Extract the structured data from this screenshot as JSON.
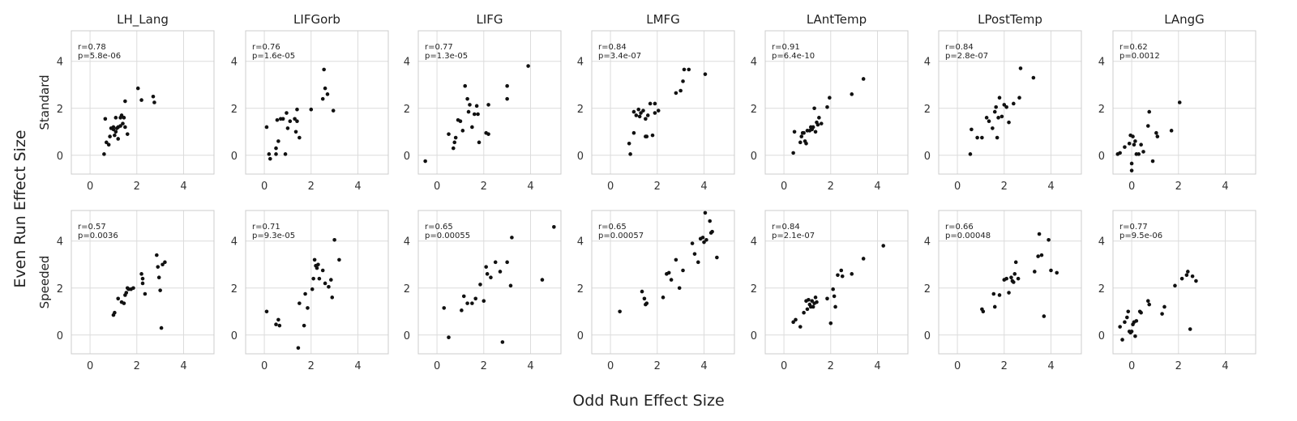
{
  "figure": {
    "xlabel": "Odd Run Effect Size",
    "ylabel": "Even Run Effect Size"
  },
  "chart_data": {
    "type": "scatter",
    "xlim": [
      -0.8,
      5.3
    ],
    "ylim": [
      -0.8,
      5.3
    ],
    "x_ticks": [
      0,
      2,
      4
    ],
    "y_ticks": [
      0,
      2,
      4
    ],
    "grid": true,
    "point_color": "#111111",
    "columns": [
      "LH_Lang",
      "LIFGorb",
      "LIFG",
      "LMFG",
      "LAntTemp",
      "LPostTemp",
      "LAngG"
    ],
    "rows": [
      "Standard",
      "Speeded"
    ],
    "panels": [
      {
        "row": "Standard",
        "column": "LH_Lang",
        "r": "r=0.78",
        "p": "p=5.8e-06",
        "x": [
          0.6,
          0.7,
          0.65,
          0.8,
          0.85,
          0.9,
          1.0,
          1.0,
          1.05,
          1.1,
          1.1,
          1.15,
          1.2,
          1.2,
          1.3,
          1.3,
          1.35,
          1.4,
          1.45,
          1.5,
          1.5,
          1.6,
          2.05,
          2.2,
          2.7,
          2.75
        ],
        "y": [
          0.05,
          0.55,
          1.55,
          0.45,
          0.8,
          1.15,
          1.1,
          1.2,
          0.85,
          1.0,
          1.6,
          1.15,
          0.7,
          1.2,
          1.25,
          1.6,
          1.7,
          1.35,
          1.6,
          1.2,
          2.3,
          0.9,
          2.85,
          2.35,
          2.5,
          2.25
        ]
      },
      {
        "row": "Standard",
        "column": "LIFGorb",
        "r": "r=0.76",
        "p": "p=1.6e-05",
        "x": [
          0.1,
          0.2,
          0.25,
          0.5,
          0.5,
          0.55,
          0.6,
          0.7,
          0.8,
          0.9,
          0.95,
          1.0,
          1.1,
          1.3,
          1.35,
          1.4,
          1.4,
          1.5,
          2.0,
          2.5,
          2.55,
          2.6,
          2.7,
          2.95
        ],
        "y": [
          1.2,
          0.05,
          -0.15,
          0.05,
          0.3,
          1.5,
          0.6,
          1.55,
          1.55,
          0.05,
          1.8,
          1.15,
          1.45,
          1.55,
          1.0,
          1.45,
          1.95,
          0.75,
          1.95,
          2.4,
          3.65,
          2.85,
          2.6,
          1.9
        ]
      },
      {
        "row": "Standard",
        "column": "LIFG",
        "r": "r=0.77",
        "p": "p=1.3e-05",
        "x": [
          -0.5,
          0.5,
          0.7,
          0.75,
          0.8,
          0.9,
          1.0,
          1.1,
          1.2,
          1.3,
          1.35,
          1.4,
          1.5,
          1.6,
          1.7,
          1.8,
          1.75,
          2.1,
          2.2,
          2.2,
          3.0,
          3.0,
          3.9
        ],
        "y": [
          -0.25,
          0.9,
          0.3,
          0.55,
          0.75,
          1.5,
          1.45,
          1.05,
          2.95,
          2.4,
          1.85,
          2.15,
          1.2,
          1.75,
          2.1,
          0.55,
          1.75,
          0.95,
          2.15,
          0.9,
          2.95,
          2.4,
          3.8
        ]
      },
      {
        "row": "Standard",
        "column": "LMFG",
        "r": "r=0.84",
        "p": "p=3.4e-07",
        "x": [
          0.8,
          0.85,
          1.0,
          1.0,
          1.1,
          1.2,
          1.25,
          1.3,
          1.4,
          1.5,
          1.5,
          1.55,
          1.6,
          1.7,
          1.8,
          1.9,
          1.9,
          2.05,
          2.8,
          3.0,
          3.1,
          3.15,
          3.35,
          4.05
        ],
        "y": [
          0.5,
          0.05,
          0.95,
          1.85,
          1.7,
          1.95,
          1.65,
          1.8,
          1.9,
          0.8,
          1.55,
          0.8,
          1.7,
          2.2,
          0.85,
          1.8,
          2.2,
          1.9,
          2.65,
          2.75,
          3.15,
          3.65,
          3.65,
          3.45
        ]
      },
      {
        "row": "Standard",
        "column": "LAntTemp",
        "r": "r=0.91",
        "p": "p=6.4e-10",
        "x": [
          0.4,
          0.45,
          0.7,
          0.75,
          0.8,
          0.85,
          0.9,
          0.95,
          1.0,
          1.1,
          1.15,
          1.2,
          1.25,
          1.3,
          1.35,
          1.4,
          1.45,
          1.5,
          1.6,
          1.85,
          1.95,
          2.9,
          3.4
        ],
        "y": [
          0.1,
          1.0,
          0.55,
          0.8,
          0.95,
          0.95,
          0.6,
          0.5,
          1.05,
          1.05,
          1.2,
          1.1,
          1.2,
          2.0,
          1.0,
          1.4,
          1.3,
          1.6,
          1.35,
          2.05,
          2.45,
          2.6,
          3.25
        ]
      },
      {
        "row": "Standard",
        "column": "LPostTemp",
        "r": "r=0.84",
        "p": "p=2.8e-07",
        "x": [
          0.55,
          0.6,
          0.85,
          1.05,
          1.25,
          1.35,
          1.5,
          1.6,
          1.65,
          1.7,
          1.75,
          1.8,
          1.9,
          2.0,
          2.1,
          2.2,
          2.4,
          2.65,
          2.7,
          3.25
        ],
        "y": [
          0.05,
          1.1,
          0.75,
          0.75,
          1.6,
          1.45,
          1.15,
          1.85,
          2.05,
          0.75,
          1.6,
          2.45,
          1.65,
          2.15,
          2.05,
          1.4,
          2.2,
          2.45,
          3.7,
          3.3
        ]
      },
      {
        "row": "Standard",
        "column": "LAngG",
        "r": "r=0.62",
        "p": "p=0.0012",
        "x": [
          -0.6,
          -0.5,
          -0.3,
          -0.1,
          -0.05,
          0.0,
          0.0,
          0.05,
          0.1,
          0.15,
          0.2,
          0.3,
          0.4,
          0.5,
          0.7,
          0.75,
          0.9,
          1.05,
          1.1,
          1.7,
          2.05
        ],
        "y": [
          0.05,
          0.1,
          0.35,
          0.5,
          0.85,
          -0.35,
          -0.65,
          0.8,
          0.45,
          0.6,
          0.05,
          0.05,
          0.45,
          0.15,
          1.25,
          1.85,
          -0.25,
          0.95,
          0.8,
          1.05,
          2.25
        ]
      },
      {
        "row": "Speeded",
        "column": "LH_Lang",
        "r": "r=0.57",
        "p": "p=0.0036",
        "x": [
          1.0,
          1.05,
          1.2,
          1.35,
          1.45,
          1.5,
          1.55,
          1.6,
          1.65,
          1.75,
          1.85,
          2.2,
          2.25,
          2.25,
          2.35,
          2.85,
          2.9,
          2.95,
          3.0,
          3.05,
          3.1,
          3.2
        ],
        "y": [
          0.85,
          0.95,
          1.55,
          1.4,
          1.35,
          1.7,
          1.8,
          2.0,
          1.95,
          1.95,
          2.0,
          2.6,
          2.2,
          2.4,
          1.75,
          3.4,
          2.9,
          2.45,
          1.9,
          0.3,
          3.0,
          3.1
        ]
      },
      {
        "row": "Speeded",
        "column": "LIFGorb",
        "r": "r=0.71",
        "p": "p=9.3e-05",
        "x": [
          0.1,
          0.5,
          0.6,
          0.65,
          1.45,
          1.5,
          1.7,
          1.75,
          1.85,
          2.05,
          2.1,
          2.15,
          2.2,
          2.25,
          2.3,
          2.35,
          2.5,
          2.6,
          2.75,
          2.85,
          2.9,
          3.0,
          3.2
        ],
        "y": [
          1.0,
          0.45,
          0.65,
          0.4,
          -0.55,
          1.35,
          0.4,
          1.75,
          1.15,
          1.95,
          2.4,
          3.2,
          2.95,
          2.85,
          3.0,
          2.4,
          2.75,
          2.2,
          2.05,
          2.35,
          1.6,
          4.05,
          3.2
        ]
      },
      {
        "row": "Speeded",
        "column": "LIFG",
        "r": "r=0.65",
        "p": "p=0.00055",
        "x": [
          0.3,
          0.5,
          1.05,
          1.15,
          1.3,
          1.5,
          1.65,
          1.85,
          2.0,
          2.1,
          2.15,
          2.3,
          2.5,
          2.7,
          2.8,
          3.0,
          3.15,
          3.2,
          4.5,
          5.0
        ],
        "y": [
          1.15,
          -0.1,
          1.05,
          1.65,
          1.35,
          1.35,
          1.55,
          2.15,
          1.45,
          2.9,
          2.6,
          2.45,
          3.1,
          2.7,
          -0.3,
          3.1,
          2.1,
          4.15,
          2.35,
          4.6
        ]
      },
      {
        "row": "Speeded",
        "column": "LMFG",
        "r": "r=0.65",
        "p": "p=0.00057",
        "x": [
          0.4,
          1.35,
          1.45,
          1.5,
          1.55,
          2.25,
          2.4,
          2.5,
          2.6,
          2.8,
          2.95,
          3.1,
          3.5,
          3.6,
          3.75,
          3.85,
          3.95,
          4.0,
          4.05,
          4.1,
          4.25,
          4.3,
          4.35,
          4.55
        ],
        "y": [
          1.0,
          1.85,
          1.55,
          1.3,
          1.35,
          1.6,
          2.6,
          2.65,
          2.35,
          3.2,
          2.0,
          2.75,
          3.9,
          3.45,
          3.1,
          4.1,
          4.15,
          3.95,
          5.2,
          4.05,
          4.85,
          4.35,
          4.4,
          3.3
        ]
      },
      {
        "row": "Speeded",
        "column": "LAntTemp",
        "r": "r=0.84",
        "p": "p=2.1e-07",
        "x": [
          0.4,
          0.5,
          0.7,
          0.85,
          0.95,
          1.0,
          1.05,
          1.1,
          1.15,
          1.2,
          1.25,
          1.3,
          1.35,
          1.4,
          1.85,
          2.0,
          2.1,
          2.15,
          2.2,
          2.3,
          2.45,
          2.5,
          2.9,
          3.4,
          4.25
        ],
        "y": [
          0.55,
          0.65,
          0.35,
          0.95,
          1.45,
          1.1,
          1.5,
          1.3,
          1.2,
          1.45,
          1.2,
          1.35,
          1.6,
          1.4,
          1.55,
          0.5,
          1.95,
          1.65,
          1.2,
          2.55,
          2.75,
          2.5,
          2.6,
          3.25,
          3.8
        ]
      },
      {
        "row": "Speeded",
        "column": "LPostTemp",
        "r": "r=0.66",
        "p": "p=0.00048",
        "x": [
          1.05,
          1.1,
          1.55,
          1.6,
          1.8,
          2.0,
          2.1,
          2.2,
          2.3,
          2.35,
          2.4,
          2.45,
          2.5,
          2.6,
          3.3,
          3.45,
          3.5,
          3.6,
          3.7,
          3.9,
          4.0,
          4.25
        ],
        "y": [
          1.1,
          1.0,
          1.75,
          1.2,
          1.7,
          2.35,
          2.4,
          1.8,
          2.45,
          2.3,
          2.25,
          2.6,
          3.1,
          2.4,
          2.7,
          3.35,
          4.3,
          3.4,
          0.8,
          4.05,
          2.75,
          2.65
        ]
      },
      {
        "row": "Speeded",
        "column": "LAngG",
        "r": "r=0.77",
        "p": "p=9.5e-06",
        "x": [
          -0.5,
          -0.4,
          -0.3,
          -0.2,
          -0.15,
          -0.1,
          -0.05,
          0.0,
          0.05,
          0.1,
          0.15,
          0.2,
          0.35,
          0.4,
          0.7,
          0.75,
          1.3,
          1.4,
          1.85,
          2.15,
          2.35,
          2.4,
          2.5,
          2.6,
          2.75
        ],
        "y": [
          0.35,
          -0.2,
          0.55,
          0.75,
          1.0,
          0.15,
          0.1,
          0.15,
          0.45,
          0.55,
          -0.05,
          0.6,
          1.0,
          0.95,
          1.45,
          1.3,
          0.9,
          1.2,
          2.1,
          2.4,
          2.55,
          2.7,
          0.25,
          2.5,
          2.3
        ]
      }
    ]
  }
}
